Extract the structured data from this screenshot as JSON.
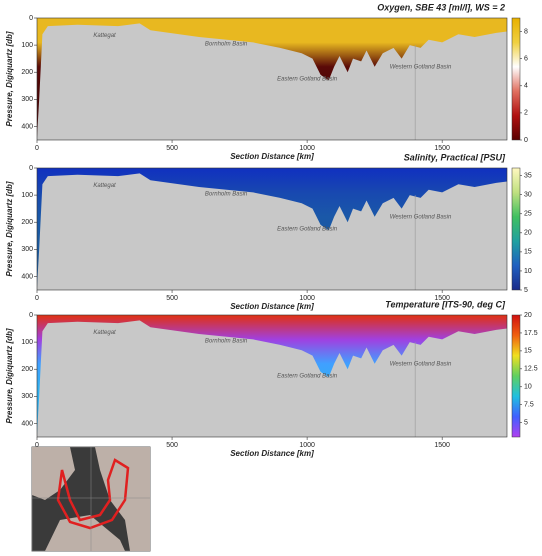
{
  "chart_data": [
    {
      "type": "section",
      "title": "Oxygen, SBE 43 [ml/l], WS = 2",
      "xlabel": "Section Distance [km]",
      "ylabel": "Pressure, Digiquartz [db]",
      "xlim": [
        0,
        1740
      ],
      "xticks": [
        0,
        500,
        1000,
        1500
      ],
      "ylim": [
        0,
        450
      ],
      "yticks": [
        0,
        100,
        200,
        300,
        400
      ],
      "colorbar": {
        "clim": [
          0,
          9
        ],
        "ticks": [
          0,
          2,
          4,
          6,
          8
        ],
        "colors": [
          "#5a0000",
          "#b01010",
          "#e07060",
          "#ffffff",
          "#f0d040",
          "#e8b000"
        ]
      },
      "field": [
        "#e8b820",
        "#e8b820",
        "#5a0a08",
        "#4a0505"
      ],
      "annotations": [
        "Kattegat",
        "Bornholm Basin",
        "Eastern Gotland Basin",
        "Western Gotland Basin"
      ]
    },
    {
      "type": "section",
      "title": "Salinity, Practical [PSU]",
      "xlabel": "Section Distance [km]",
      "ylabel": "Pressure, Digiquartz [db]",
      "xlim": [
        0,
        1740
      ],
      "xticks": [
        0,
        500,
        1000,
        1500
      ],
      "ylim": [
        0,
        450
      ],
      "yticks": [
        0,
        100,
        200,
        300,
        400
      ],
      "colorbar": {
        "clim": [
          5,
          37
        ],
        "ticks": [
          5,
          10,
          15,
          20,
          25,
          30,
          35
        ],
        "colors": [
          "#1a2a8a",
          "#2060c0",
          "#20a0a0",
          "#40c060",
          "#c0e080",
          "#fff8c0"
        ]
      },
      "field": [
        "#1030c0",
        "#1848b0",
        "#1a58a8",
        "#1a5aa0"
      ],
      "annotations": [
        "Kattegat",
        "Bornholm Basin",
        "Eastern Gotland Basin",
        "Western Gotland Basin"
      ]
    },
    {
      "type": "section",
      "title": "Temperature [ITS-90, deg C]",
      "xlabel": "Section Distance [km]",
      "ylabel": "Pressure, Digiquartz [db]",
      "xlim": [
        0,
        1740
      ],
      "xticks": [
        0,
        500,
        1000,
        1500
      ],
      "ylim": [
        0,
        450
      ],
      "yticks": [
        0,
        100,
        200,
        300,
        400
      ],
      "colorbar": {
        "clim": [
          3,
          20
        ],
        "ticks": [
          5,
          7.5,
          10,
          12.5,
          15,
          17.5,
          20
        ],
        "colors": [
          "#b040f0",
          "#4060ff",
          "#20c0e0",
          "#60d060",
          "#f0e020",
          "#f06010",
          "#d01010"
        ]
      },
      "field": [
        "#e03010",
        "#a040e0",
        "#40a0ff",
        "#30b0f0"
      ],
      "annotations": [
        "Kattegat",
        "Bornholm Basin",
        "Eastern Gotland Basin",
        "Western Gotland Basin"
      ]
    }
  ]
}
